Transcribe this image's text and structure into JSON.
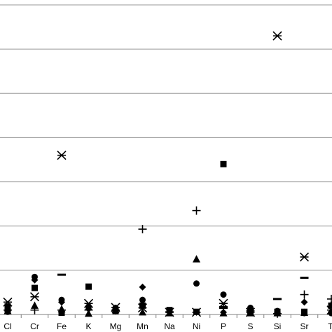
{
  "chart_data": {
    "type": "scatter",
    "title": "",
    "xlabel": "",
    "ylabel": "",
    "grid": true,
    "legend": "none",
    "ylim": [
      0,
      7
    ],
    "yticks": [
      0,
      1,
      2,
      3,
      4,
      5,
      6,
      7
    ],
    "categories": [
      "Cl",
      "Cr",
      "Fe",
      "K",
      "Mg",
      "Mn",
      "Na",
      "Ni",
      "P",
      "S",
      "Si",
      "Sr",
      "Ti"
    ],
    "series": [
      {
        "marker": "circle",
        "points": [
          [
            "Cl",
            0.06
          ],
          [
            "Cr",
            0.85
          ],
          [
            "Fe",
            0.33
          ],
          [
            "K",
            0.18
          ],
          [
            "Mg",
            0.15
          ],
          [
            "Mn",
            0.33
          ],
          [
            "Na",
            0.09
          ],
          [
            "Ni",
            0.7
          ],
          [
            "P",
            0.45
          ],
          [
            "S",
            0.15
          ],
          [
            "Si",
            0.08
          ],
          [
            "Sr",
            0.03
          ],
          [
            "Ti",
            0.03
          ]
        ]
      },
      {
        "marker": "diamond",
        "points": [
          [
            "Cl",
            0.08
          ],
          [
            "Cr",
            0.78
          ],
          [
            "Fe",
            0.28
          ],
          [
            "K",
            0.12
          ],
          [
            "Mg",
            0.12
          ],
          [
            "Mn",
            0.62
          ],
          [
            "Na",
            0.05
          ],
          [
            "Ni",
            0.05
          ],
          [
            "P",
            0.05
          ],
          [
            "S",
            0.1
          ],
          [
            "Si",
            0.05
          ],
          [
            "Sr",
            0.28
          ],
          [
            "Ti",
            0.06
          ]
        ]
      },
      {
        "marker": "square",
        "points": [
          [
            "Cl",
            0.18
          ],
          [
            "Cr",
            0.6
          ],
          [
            "Fe",
            0.04
          ],
          [
            "K",
            0.63
          ],
          [
            "Mg",
            0.08
          ],
          [
            "Mn",
            0.2
          ],
          [
            "Na",
            0.1
          ],
          [
            "Ni",
            0.06
          ],
          [
            "P",
            3.4
          ],
          [
            "S",
            0.06
          ],
          [
            "Si",
            0.06
          ],
          [
            "Sr",
            0.06
          ],
          [
            "Ti",
            0.2
          ]
        ]
      },
      {
        "marker": "triangle",
        "points": [
          [
            "Cl",
            0.08
          ],
          [
            "Cr",
            0.2
          ],
          [
            "Fe",
            0.12
          ],
          [
            "K",
            0.02
          ],
          [
            "Mg",
            0.1
          ],
          [
            "Mn",
            0.05
          ],
          [
            "Na",
            0.03
          ],
          [
            "Ni",
            1.25
          ],
          [
            "P",
            0.03
          ],
          [
            "S",
            0.03
          ],
          [
            "Si",
            0.03
          ],
          [
            "Sr",
            0.04
          ],
          [
            "Ti",
            0.22
          ]
        ]
      },
      {
        "marker": "star",
        "points": [
          [
            "Cl",
            0.28
          ],
          [
            "Cr",
            0.4
          ],
          [
            "Fe",
            3.6
          ],
          [
            "K",
            0.25
          ],
          [
            "Mg",
            0.16
          ],
          [
            "Mn",
            0.15
          ],
          [
            "Na",
            0.05
          ],
          [
            "Ni",
            0.05
          ],
          [
            "P",
            0.25
          ],
          [
            "S",
            0.05
          ],
          [
            "Si",
            6.3
          ],
          [
            "Sr",
            1.3
          ],
          [
            "Ti",
            0.1
          ]
        ]
      },
      {
        "marker": "plus",
        "points": [
          [
            "Cl",
            0.1
          ],
          [
            "Cr",
            0.1
          ],
          [
            "Fe",
            0.1
          ],
          [
            "K",
            0.1
          ],
          [
            "Mg",
            0.1
          ],
          [
            "Mn",
            1.93
          ],
          [
            "Na",
            0.06
          ],
          [
            "Ni",
            2.35
          ],
          [
            "P",
            0.18
          ],
          [
            "S",
            0.08
          ],
          [
            "Si",
            0.02
          ],
          [
            "Sr",
            0.45
          ],
          [
            "Ti",
            0.35
          ]
        ]
      },
      {
        "marker": "dash",
        "points": [
          [
            "Fe",
            0.9
          ],
          [
            "P",
            0.15
          ],
          [
            "Si",
            0.35
          ],
          [
            "Sr",
            0.83
          ]
        ]
      }
    ]
  }
}
